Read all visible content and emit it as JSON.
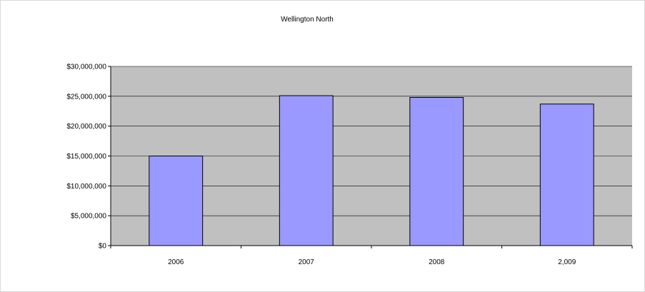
{
  "chart_data": {
    "type": "bar",
    "title": "Wellington North",
    "xlabel": "",
    "ylabel": "",
    "categories": [
      "2006",
      "2007",
      "2008",
      "2,009"
    ],
    "values": [
      15000000,
      25100000,
      24800000,
      23700000
    ],
    "ylim": [
      0,
      30000000
    ],
    "yticks": [
      0,
      5000000,
      10000000,
      15000000,
      20000000,
      25000000,
      30000000
    ],
    "ytick_labels": [
      "$0",
      "$5,000,000",
      "$10,000,000",
      "$15,000,000",
      "$20,000,000",
      "$25,000,000",
      "$30,000,000"
    ],
    "grid": true,
    "legend": "none",
    "colors": {
      "bar_fill": "#9999ff",
      "bar_stroke": "#000000",
      "plot_background": "#c0c0c0",
      "gridline": "#000000"
    }
  }
}
